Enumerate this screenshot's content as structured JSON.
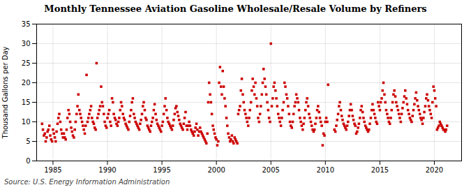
{
  "chart_data": {
    "type": "scatter",
    "title": "Monthly Tennessee Aviation Gasoline Wholesale/Resale Volume by Refiners",
    "ylabel": "Thousand Gallons per Day",
    "source": "Source: U.S. Energy Information Administration",
    "color": "#cc0000",
    "marker": "square",
    "grid": true,
    "xlim": [
      1983.5,
      2022.5
    ],
    "ylim": [
      0,
      35
    ],
    "xticks": [
      1985,
      1990,
      1995,
      2000,
      2005,
      2010,
      2015,
      2020
    ],
    "yticks": [
      0,
      5,
      10,
      15,
      20,
      25,
      30,
      35
    ],
    "x": [
      1984.0,
      1984.08,
      1984.17,
      1984.25,
      1984.33,
      1984.42,
      1984.5,
      1984.58,
      1984.67,
      1984.75,
      1984.83,
      1984.92,
      1985.0,
      1985.08,
      1985.17,
      1985.25,
      1985.33,
      1985.42,
      1985.5,
      1985.58,
      1985.67,
      1985.75,
      1985.83,
      1985.92,
      1986.0,
      1986.08,
      1986.17,
      1986.25,
      1986.33,
      1986.42,
      1986.5,
      1986.58,
      1986.67,
      1986.75,
      1986.83,
      1986.92,
      1987.0,
      1987.08,
      1987.17,
      1987.25,
      1987.33,
      1987.42,
      1987.5,
      1987.58,
      1987.67,
      1987.75,
      1987.83,
      1987.92,
      1988.0,
      1988.08,
      1988.17,
      1988.25,
      1988.33,
      1988.42,
      1988.5,
      1988.58,
      1988.67,
      1988.75,
      1988.83,
      1988.92,
      1989.0,
      1989.08,
      1989.17,
      1989.25,
      1989.33,
      1989.42,
      1989.5,
      1989.58,
      1989.67,
      1989.75,
      1989.83,
      1989.92,
      1990.0,
      1990.08,
      1990.17,
      1990.25,
      1990.33,
      1990.42,
      1990.5,
      1990.58,
      1990.67,
      1990.75,
      1990.83,
      1990.92,
      1991.0,
      1991.08,
      1991.17,
      1991.25,
      1991.33,
      1991.42,
      1991.5,
      1991.58,
      1991.67,
      1991.75,
      1991.83,
      1991.92,
      1992.0,
      1992.08,
      1992.17,
      1992.25,
      1992.33,
      1992.42,
      1992.5,
      1992.58,
      1992.67,
      1992.75,
      1992.83,
      1992.92,
      1993.0,
      1993.08,
      1993.17,
      1993.25,
      1993.33,
      1993.42,
      1993.5,
      1993.58,
      1993.67,
      1993.75,
      1993.83,
      1993.92,
      1994.0,
      1994.08,
      1994.17,
      1994.25,
      1994.33,
      1994.42,
      1994.5,
      1994.58,
      1994.67,
      1994.75,
      1994.83,
      1994.92,
      1995.0,
      1995.08,
      1995.17,
      1995.25,
      1995.33,
      1995.42,
      1995.5,
      1995.58,
      1995.67,
      1995.75,
      1995.83,
      1995.92,
      1996.0,
      1996.08,
      1996.17,
      1996.25,
      1996.33,
      1996.42,
      1996.5,
      1996.58,
      1996.67,
      1996.75,
      1996.83,
      1996.92,
      1997.0,
      1997.08,
      1997.17,
      1997.25,
      1997.33,
      1997.42,
      1997.5,
      1997.58,
      1997.67,
      1997.75,
      1997.83,
      1997.92,
      1998.0,
      1998.08,
      1998.17,
      1998.25,
      1998.33,
      1998.42,
      1998.5,
      1998.58,
      1998.67,
      1998.75,
      1998.83,
      1998.92,
      1999.0,
      1999.08,
      1999.17,
      1999.25,
      1999.33,
      1999.42,
      1999.5,
      1999.58,
      1999.67,
      1999.75,
      1999.83,
      1999.92,
      2000.0,
      2000.08,
      2000.17,
      2000.25,
      2000.33,
      2000.42,
      2000.5,
      2000.58,
      2000.67,
      2000.75,
      2000.83,
      2000.92,
      2001.0,
      2001.08,
      2001.17,
      2001.25,
      2001.33,
      2001.42,
      2001.5,
      2001.58,
      2001.67,
      2001.75,
      2001.83,
      2001.92,
      2002.0,
      2002.08,
      2002.17,
      2002.25,
      2002.33,
      2002.42,
      2002.5,
      2002.58,
      2002.67,
      2002.75,
      2002.83,
      2002.92,
      2003.0,
      2003.08,
      2003.17,
      2003.25,
      2003.33,
      2003.42,
      2003.5,
      2003.58,
      2003.67,
      2003.75,
      2003.83,
      2003.92,
      2004.0,
      2004.08,
      2004.17,
      2004.25,
      2004.33,
      2004.42,
      2004.5,
      2004.58,
      2004.67,
      2004.75,
      2004.83,
      2004.92,
      2005.0,
      2005.08,
      2005.17,
      2005.25,
      2005.33,
      2005.42,
      2005.5,
      2005.58,
      2005.67,
      2005.75,
      2005.83,
      2005.92,
      2006.0,
      2006.08,
      2006.17,
      2006.25,
      2006.33,
      2006.42,
      2006.5,
      2006.58,
      2006.67,
      2006.75,
      2006.83,
      2006.92,
      2007.0,
      2007.08,
      2007.17,
      2007.25,
      2007.33,
      2007.42,
      2007.5,
      2007.58,
      2007.67,
      2007.75,
      2007.83,
      2007.92,
      2008.0,
      2008.08,
      2008.17,
      2008.25,
      2008.33,
      2008.42,
      2008.5,
      2008.58,
      2008.67,
      2008.75,
      2008.83,
      2008.92,
      2009.0,
      2009.08,
      2009.17,
      2009.25,
      2009.33,
      2009.42,
      2009.5,
      2009.58,
      2009.67,
      2009.75,
      2009.83,
      2009.92,
      2010.0,
      2010.08,
      2010.17,
      2010.25,
      2010.83,
      2010.92,
      2011.0,
      2011.08,
      2011.17,
      2011.25,
      2011.33,
      2011.42,
      2011.5,
      2011.58,
      2011.67,
      2011.75,
      2011.83,
      2011.92,
      2012.0,
      2012.08,
      2012.17,
      2012.25,
      2012.33,
      2012.42,
      2012.5,
      2012.58,
      2012.67,
      2012.75,
      2012.83,
      2012.92,
      2013.0,
      2013.08,
      2013.17,
      2013.25,
      2013.33,
      2013.42,
      2013.5,
      2013.58,
      2013.67,
      2013.75,
      2013.83,
      2013.92,
      2014.0,
      2014.08,
      2014.17,
      2014.25,
      2014.33,
      2014.42,
      2014.5,
      2014.58,
      2014.67,
      2014.75,
      2014.83,
      2014.92,
      2015.0,
      2015.08,
      2015.17,
      2015.25,
      2015.33,
      2015.42,
      2015.5,
      2015.58,
      2015.67,
      2015.75,
      2015.83,
      2015.92,
      2016.0,
      2016.08,
      2016.17,
      2016.25,
      2016.33,
      2016.42,
      2016.5,
      2016.58,
      2016.67,
      2016.75,
      2016.83,
      2016.92,
      2017.0,
      2017.08,
      2017.17,
      2017.25,
      2017.33,
      2017.42,
      2017.5,
      2017.58,
      2017.67,
      2017.75,
      2017.83,
      2017.92,
      2018.0,
      2018.08,
      2018.17,
      2018.25,
      2018.33,
      2018.42,
      2018.5,
      2018.58,
      2018.67,
      2018.75,
      2018.83,
      2018.92,
      2019.0,
      2019.08,
      2019.17,
      2019.25,
      2019.33,
      2019.42,
      2019.5,
      2019.58,
      2019.67,
      2019.75,
      2019.83,
      2019.92,
      2020.0,
      2020.08,
      2020.17,
      2020.25,
      2020.33,
      2020.42,
      2020.5,
      2020.58,
      2020.67,
      2020.75,
      2020.83,
      2020.92,
      2021.0,
      2021.08,
      2021.17
    ],
    "values": [
      9.5,
      8.0,
      6.5,
      7.0,
      5.0,
      6.0,
      7.5,
      8.0,
      9.0,
      6.5,
      5.5,
      5.0,
      8.0,
      7.0,
      6.0,
      5.0,
      7.5,
      9.5,
      11.0,
      12.0,
      10.0,
      8.0,
      7.0,
      6.0,
      7.0,
      6.0,
      5.5,
      8.0,
      11.0,
      13.0,
      12.0,
      10.0,
      8.5,
      7.5,
      6.5,
      6.0,
      8.0,
      10.0,
      12.0,
      14.0,
      17.0,
      13.0,
      12.0,
      11.0,
      10.0,
      9.0,
      8.0,
      7.0,
      9.0,
      22.0,
      10.0,
      11.0,
      12.0,
      13.0,
      14.0,
      11.0,
      10.0,
      9.5,
      8.5,
      8.0,
      25.0,
      11.0,
      12.0,
      13.0,
      14.0,
      19.0,
      15.0,
      14.0,
      12.0,
      10.0,
      9.0,
      8.5,
      11.0,
      12.0,
      13.0,
      10.0,
      9.0,
      16.0,
      15.0,
      12.0,
      11.0,
      10.5,
      9.5,
      9.0,
      10.0,
      11.0,
      13.0,
      15.0,
      14.0,
      12.0,
      11.0,
      10.5,
      9.5,
      9.0,
      8.5,
      8.0,
      10.0,
      11.5,
      13.0,
      15.0,
      16.0,
      12.0,
      11.0,
      10.0,
      9.5,
      9.0,
      8.5,
      8.0,
      9.5,
      10.5,
      12.0,
      14.0,
      15.0,
      13.0,
      11.0,
      10.5,
      9.0,
      8.5,
      8.0,
      7.5,
      9.0,
      10.0,
      11.0,
      13.0,
      14.5,
      12.0,
      10.5,
      9.5,
      9.0,
      8.5,
      8.0,
      7.5,
      9.0,
      10.0,
      12.0,
      14.0,
      16.0,
      13.0,
      11.0,
      10.0,
      9.5,
      9.0,
      8.5,
      8.0,
      9.0,
      10.5,
      12.0,
      13.5,
      14.0,
      12.5,
      11.5,
      10.5,
      9.5,
      9.0,
      8.5,
      8.0,
      9.5,
      11.0,
      12.5,
      9.0,
      8.0,
      9.0,
      10.0,
      9.0,
      8.0,
      7.5,
      7.0,
      6.5,
      7.5,
      8.5,
      9.5,
      8.0,
      6.5,
      7.5,
      8.5,
      7.5,
      7.0,
      6.5,
      6.0,
      5.5,
      5.0,
      4.5,
      7.0,
      15.0,
      20.0,
      17.0,
      15.0,
      12.0,
      9.0,
      8.0,
      7.0,
      6.0,
      5.5,
      4.0,
      5.0,
      20.0,
      24.0,
      19.0,
      17.0,
      23.0,
      19.0,
      16.0,
      14.0,
      11.0,
      9.0,
      7.0,
      6.0,
      5.0,
      5.5,
      6.5,
      5.0,
      4.5,
      6.0,
      5.5,
      5.0,
      4.5,
      12.0,
      13.0,
      14.0,
      18.0,
      21.0,
      17.0,
      15.0,
      13.0,
      12.0,
      11.0,
      10.0,
      9.0,
      11.0,
      13.0,
      15.0,
      18.0,
      21.0,
      19.0,
      17.0,
      20.0,
      16.0,
      14.0,
      11.0,
      10.0,
      12.0,
      14.0,
      17.0,
      20.0,
      23.5,
      21.0,
      19.0,
      17.0,
      15.0,
      13.0,
      11.0,
      10.0,
      30.0,
      14.0,
      16.0,
      19.0,
      20.0,
      18.0,
      16.0,
      14.0,
      12.0,
      11.0,
      10.0,
      9.0,
      11.0,
      13.0,
      15.0,
      20.0,
      19.0,
      17.0,
      16.0,
      14.0,
      12.0,
      10.0,
      9.0,
      8.5,
      10.0,
      12.0,
      14.0,
      15.0,
      17.0,
      16.0,
      15.0,
      13.0,
      11.0,
      10.0,
      9.0,
      8.0,
      9.5,
      11.0,
      13.0,
      15.0,
      16.0,
      14.0,
      12.0,
      11.0,
      10.0,
      9.0,
      8.0,
      7.5,
      8.0,
      9.5,
      11.0,
      13.0,
      14.0,
      12.5,
      11.0,
      10.0,
      9.0,
      4.0,
      7.0,
      6.5,
      10.0,
      11.0,
      10.0,
      19.5,
      8.0,
      7.5,
      9.0,
      10.5,
      12.0,
      14.0,
      15.0,
      13.0,
      11.5,
      10.5,
      9.5,
      9.0,
      8.5,
      8.0,
      9.0,
      10.0,
      11.5,
      13.0,
      14.5,
      13.0,
      11.5,
      10.5,
      9.5,
      9.0,
      7.0,
      7.5,
      8.5,
      9.5,
      11.0,
      13.0,
      14.0,
      12.5,
      11.0,
      10.0,
      9.0,
      8.5,
      8.0,
      7.5,
      8.0,
      9.5,
      11.0,
      13.0,
      14.5,
      13.0,
      12.0,
      11.0,
      10.0,
      9.5,
      15.0,
      14.0,
      13.0,
      15.0,
      16.0,
      18.0,
      20.0,
      17.0,
      15.0,
      13.0,
      12.0,
      11.0,
      10.0,
      9.5,
      11.0,
      13.0,
      15.0,
      17.0,
      18.0,
      16.5,
      15.0,
      14.0,
      13.0,
      12.0,
      11.0,
      10.0,
      12.0,
      13.5,
      15.0,
      16.5,
      18.0,
      16.0,
      14.5,
      13.0,
      12.0,
      11.0,
      10.5,
      10.0,
      11.5,
      13.0,
      14.5,
      16.0,
      17.5,
      15.5,
      14.0,
      13.0,
      12.0,
      11.0,
      10.5,
      9.5,
      11.0,
      12.5,
      14.0,
      16.0,
      17.0,
      15.5,
      14.0,
      13.0,
      12.0,
      11.0,
      15.0,
      19.0,
      18.0,
      16.0,
      14.0,
      8.0,
      8.5,
      9.0,
      10.0,
      9.5,
      9.0,
      8.5,
      8.0,
      8.0,
      7.5,
      8.0,
      9.0
    ]
  }
}
